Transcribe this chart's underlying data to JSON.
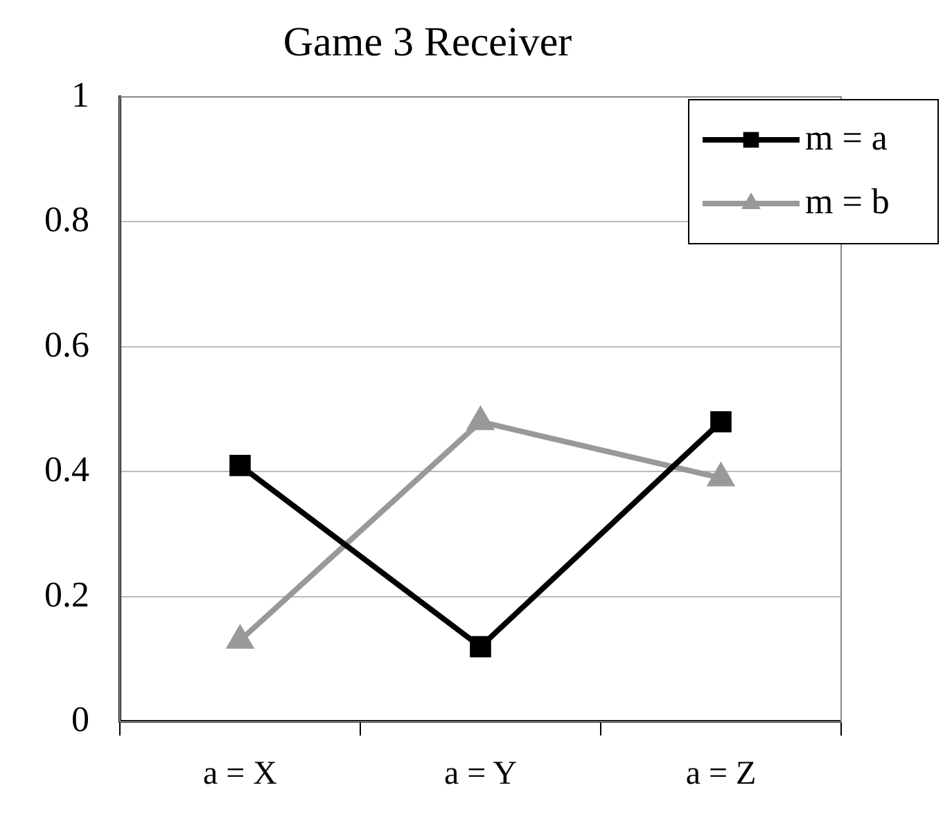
{
  "chart_data": {
    "type": "line",
    "title": "Game 3 Receiver",
    "categories": [
      "a = X",
      "a = Y",
      "a = Z"
    ],
    "series": [
      {
        "name": "m = a",
        "color": "#000000",
        "values": [
          0.41,
          0.12,
          0.48
        ],
        "marker": "square"
      },
      {
        "name": "m = b",
        "color": "#999999",
        "values": [
          0.13,
          0.48,
          0.39
        ],
        "marker": "triangle"
      }
    ],
    "ylim": [
      0,
      1
    ],
    "yticks": [
      0,
      0.2,
      0.4,
      0.6,
      0.8,
      1
    ],
    "grid": "y",
    "legend": "top right"
  }
}
